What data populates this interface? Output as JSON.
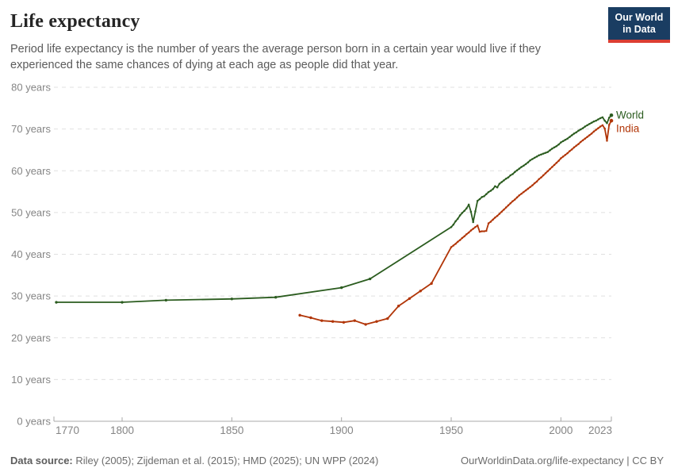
{
  "header": {
    "title": "Life expectancy",
    "subtitle": "Period life expectancy is the number of years the average person born in a certain year would live if they experienced the same chances of dying at each age as people did that year.",
    "logo": {
      "line1": "Our World",
      "line2": "in Data",
      "bg_color": "#1a3d62",
      "accent_color": "#dc3e32"
    }
  },
  "footer": {
    "source_label": "Data source:",
    "source_rest": " Riley (2005); Zijdeman et al. (2015); HMD (2025); UN WPP (2024)",
    "right_text": "OurWorldinData.org/life-expectancy | CC BY"
  },
  "chart_data": {
    "type": "line",
    "title": "Life expectancy",
    "xlabel": "",
    "ylabel": "years",
    "ylim": [
      0,
      80
    ],
    "xlim": [
      1769,
      2023
    ],
    "grid": "horizontal-dashed",
    "legend_position": "line-end-labels",
    "y_ticks": [
      0,
      10,
      20,
      30,
      40,
      50,
      60,
      70,
      80
    ],
    "y_tick_suffix": " years",
    "x_ticks": [
      1770,
      1800,
      1850,
      1900,
      1950,
      2000,
      2023
    ],
    "colors": {
      "axis": "#a9a9a9",
      "grid": "#e0e0e0",
      "tick_label": "#858585"
    },
    "series": [
      {
        "name": "World",
        "color": "#2b5c1f",
        "points": [
          [
            1770,
            28.5
          ],
          [
            1800,
            28.5
          ],
          [
            1820,
            29.0
          ],
          [
            1850,
            29.3
          ],
          [
            1870,
            29.7
          ],
          [
            1900,
            32.0
          ],
          [
            1913,
            34.1
          ],
          [
            1950,
            46.5
          ],
          [
            1951,
            47.1
          ],
          [
            1952,
            47.9
          ],
          [
            1953,
            48.5
          ],
          [
            1954,
            49.3
          ],
          [
            1955,
            49.9
          ],
          [
            1956,
            50.4
          ],
          [
            1957,
            51.0
          ],
          [
            1958,
            51.9
          ],
          [
            1959,
            50.2
          ],
          [
            1960,
            47.7
          ],
          [
            1961,
            50.3
          ],
          [
            1962,
            52.8
          ],
          [
            1963,
            53.2
          ],
          [
            1964,
            53.7
          ],
          [
            1965,
            53.9
          ],
          [
            1966,
            54.4
          ],
          [
            1967,
            54.9
          ],
          [
            1968,
            55.2
          ],
          [
            1969,
            55.6
          ],
          [
            1970,
            56.3
          ],
          [
            1971,
            56.0
          ],
          [
            1972,
            56.9
          ],
          [
            1973,
            57.3
          ],
          [
            1974,
            57.7
          ],
          [
            1975,
            58.1
          ],
          [
            1976,
            58.4
          ],
          [
            1977,
            58.9
          ],
          [
            1978,
            59.2
          ],
          [
            1979,
            59.7
          ],
          [
            1980,
            60.1
          ],
          [
            1981,
            60.5
          ],
          [
            1982,
            60.9
          ],
          [
            1983,
            61.2
          ],
          [
            1984,
            61.6
          ],
          [
            1985,
            62.0
          ],
          [
            1986,
            62.5
          ],
          [
            1987,
            62.8
          ],
          [
            1988,
            63.1
          ],
          [
            1989,
            63.4
          ],
          [
            1990,
            63.7
          ],
          [
            1991,
            63.9
          ],
          [
            1992,
            64.1
          ],
          [
            1993,
            64.3
          ],
          [
            1994,
            64.5
          ],
          [
            1995,
            64.9
          ],
          [
            1996,
            65.3
          ],
          [
            1997,
            65.6
          ],
          [
            1998,
            65.9
          ],
          [
            1999,
            66.3
          ],
          [
            2000,
            66.8
          ],
          [
            2001,
            67.1
          ],
          [
            2002,
            67.4
          ],
          [
            2003,
            67.7
          ],
          [
            2004,
            68.1
          ],
          [
            2005,
            68.5
          ],
          [
            2006,
            68.9
          ],
          [
            2007,
            69.2
          ],
          [
            2008,
            69.6
          ],
          [
            2009,
            69.9
          ],
          [
            2010,
            70.2
          ],
          [
            2011,
            70.6
          ],
          [
            2012,
            70.9
          ],
          [
            2013,
            71.2
          ],
          [
            2014,
            71.5
          ],
          [
            2015,
            71.8
          ],
          [
            2016,
            72.0
          ],
          [
            2017,
            72.3
          ],
          [
            2018,
            72.6
          ],
          [
            2019,
            72.8
          ],
          [
            2020,
            72.0
          ],
          [
            2021,
            71.4
          ],
          [
            2022,
            72.7
          ],
          [
            2023,
            73.3
          ]
        ]
      },
      {
        "name": "India",
        "color": "#b13507",
        "points": [
          [
            1881,
            25.4
          ],
          [
            1886,
            24.8
          ],
          [
            1891,
            24.1
          ],
          [
            1896,
            23.9
          ],
          [
            1901,
            23.7
          ],
          [
            1906,
            24.1
          ],
          [
            1911,
            23.2
          ],
          [
            1916,
            23.9
          ],
          [
            1921,
            24.6
          ],
          [
            1926,
            27.6
          ],
          [
            1931,
            29.4
          ],
          [
            1936,
            31.2
          ],
          [
            1941,
            33.0
          ],
          [
            1950,
            41.7
          ],
          [
            1951,
            42.1
          ],
          [
            1952,
            42.5
          ],
          [
            1953,
            43.0
          ],
          [
            1954,
            43.4
          ],
          [
            1955,
            43.9
          ],
          [
            1956,
            44.3
          ],
          [
            1957,
            44.8
          ],
          [
            1958,
            45.2
          ],
          [
            1959,
            45.7
          ],
          [
            1960,
            46.1
          ],
          [
            1961,
            46.5
          ],
          [
            1962,
            46.9
          ],
          [
            1963,
            45.4
          ],
          [
            1964,
            45.5
          ],
          [
            1965,
            45.5
          ],
          [
            1966,
            45.6
          ],
          [
            1967,
            47.4
          ],
          [
            1968,
            47.8
          ],
          [
            1969,
            48.3
          ],
          [
            1970,
            48.8
          ],
          [
            1971,
            49.2
          ],
          [
            1972,
            49.7
          ],
          [
            1973,
            50.2
          ],
          [
            1974,
            50.7
          ],
          [
            1975,
            51.2
          ],
          [
            1976,
            51.7
          ],
          [
            1977,
            52.2
          ],
          [
            1978,
            52.7
          ],
          [
            1979,
            53.1
          ],
          [
            1980,
            53.6
          ],
          [
            1981,
            54.1
          ],
          [
            1982,
            54.5
          ],
          [
            1983,
            54.9
          ],
          [
            1984,
            55.3
          ],
          [
            1985,
            55.7
          ],
          [
            1986,
            56.1
          ],
          [
            1987,
            56.5
          ],
          [
            1988,
            57.0
          ],
          [
            1989,
            57.4
          ],
          [
            1990,
            58.0
          ],
          [
            1991,
            58.4
          ],
          [
            1992,
            58.9
          ],
          [
            1993,
            59.4
          ],
          [
            1994,
            59.9
          ],
          [
            1995,
            60.4
          ],
          [
            1996,
            60.9
          ],
          [
            1997,
            61.4
          ],
          [
            1998,
            61.9
          ],
          [
            1999,
            62.4
          ],
          [
            2000,
            63.0
          ],
          [
            2001,
            63.4
          ],
          [
            2002,
            63.8
          ],
          [
            2003,
            64.2
          ],
          [
            2004,
            64.7
          ],
          [
            2005,
            65.1
          ],
          [
            2006,
            65.6
          ],
          [
            2007,
            66.0
          ],
          [
            2008,
            66.4
          ],
          [
            2009,
            66.9
          ],
          [
            2010,
            67.3
          ],
          [
            2011,
            67.7
          ],
          [
            2012,
            68.1
          ],
          [
            2013,
            68.5
          ],
          [
            2014,
            68.9
          ],
          [
            2015,
            69.4
          ],
          [
            2016,
            69.8
          ],
          [
            2017,
            70.2
          ],
          [
            2018,
            70.6
          ],
          [
            2019,
            70.9
          ],
          [
            2020,
            70.1
          ],
          [
            2021,
            67.2
          ],
          [
            2022,
            71.0
          ],
          [
            2023,
            72.0
          ]
        ]
      }
    ]
  }
}
